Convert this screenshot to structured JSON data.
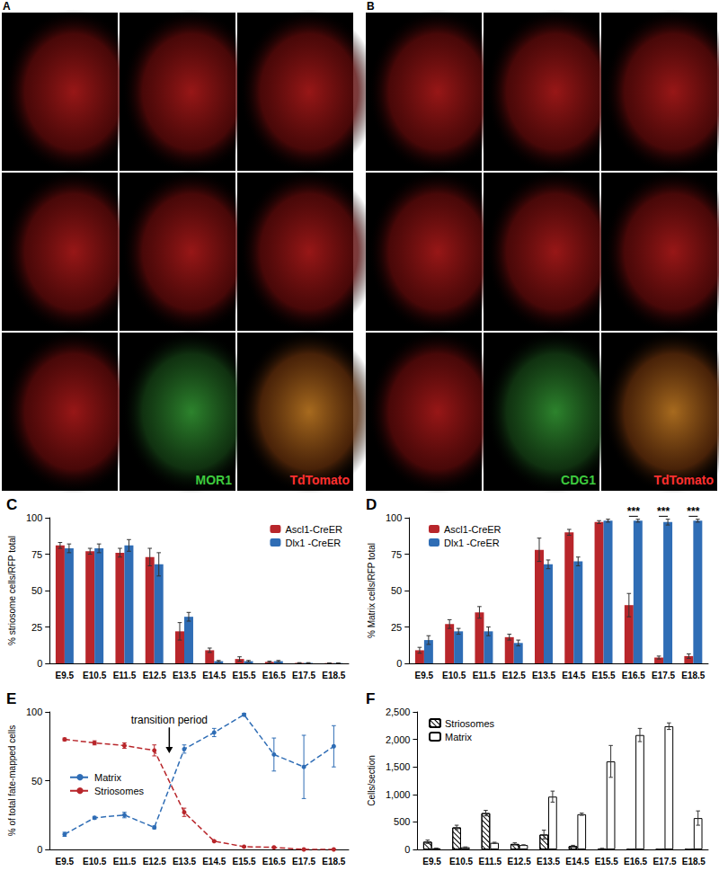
{
  "image_panels": [
    {
      "label": "A",
      "stain_labels": [
        {
          "text": "MOR1",
          "color": "#3ecb3e"
        },
        {
          "text": "TdTomato",
          "color": "#ff3030"
        }
      ]
    },
    {
      "label": "B",
      "stain_labels": [
        {
          "text": "CDG1",
          "color": "#3ecb3e"
        },
        {
          "text": "TdTomato",
          "color": "#ff3030"
        }
      ]
    }
  ],
  "chart_data": [
    {
      "type": "bar",
      "title": "C",
      "ylabel": "% striosome cells/RFP total",
      "categories": [
        "E9.5",
        "E10.5",
        "E11.5",
        "E12.5",
        "E13.5",
        "E14.5",
        "E15.5",
        "E16.5",
        "E17.5",
        "E18.5"
      ],
      "ylim": [
        0,
        100
      ],
      "yticks": [
        0,
        25,
        50,
        75,
        100
      ],
      "grid": false,
      "legend": "upper right",
      "series": [
        {
          "name": "Ascl1-CreER",
          "color": "#b8262b",
          "values": [
            81,
            77,
            76,
            73,
            22,
            9,
            3,
            1,
            0.3,
            0.2
          ],
          "errors": [
            2,
            2,
            3,
            6,
            6,
            1.5,
            1.5,
            0.5,
            0.2,
            0.1
          ]
        },
        {
          "name": "Dlx1 -CreER",
          "color": "#2f6db5",
          "values": [
            79,
            79,
            81,
            68,
            32,
            1.5,
            1.5,
            1.5,
            0.3,
            0.2
          ],
          "errors": [
            3,
            3,
            4,
            8,
            3,
            0.5,
            0.5,
            0.5,
            0.2,
            0.1
          ]
        }
      ]
    },
    {
      "type": "bar",
      "title": "D",
      "ylabel": "% Matrix cells/RFP total",
      "categories": [
        "E9.5",
        "E10.5",
        "E11.5",
        "E12.5",
        "E13.5",
        "E14.5",
        "E15.5",
        "E16.5",
        "E17.5",
        "E18.5"
      ],
      "ylim": [
        0,
        100
      ],
      "yticks": [
        0,
        25,
        50,
        75,
        100
      ],
      "grid": false,
      "legend": "upper left",
      "series": [
        {
          "name": "Ascl1-CreER",
          "color": "#b8262b",
          "values": [
            9,
            27,
            35,
            18,
            78,
            90,
            97,
            40,
            4,
            5
          ],
          "errors": [
            2,
            3,
            4,
            2,
            8,
            2,
            1,
            8,
            1,
            1.5
          ]
        },
        {
          "name": "Dlx1 -CreER",
          "color": "#2f6db5",
          "values": [
            16,
            22,
            22,
            14,
            68,
            70,
            98,
            98,
            97,
            98
          ],
          "errors": [
            3,
            2,
            3,
            2,
            3,
            3,
            1,
            1,
            2,
            1
          ]
        }
      ],
      "annotations": [
        {
          "x": "E16.5",
          "y": 101,
          "text": "***"
        },
        {
          "x": "E17.5",
          "y": 101,
          "text": "***"
        },
        {
          "x": "E18.5",
          "y": 101,
          "text": "***"
        }
      ]
    },
    {
      "type": "line",
      "title": "E",
      "ylabel": "% of total fate-mapped cells",
      "categories": [
        "E9.5",
        "E10.5",
        "E11.5",
        "E12.5",
        "E13.5",
        "E14.5",
        "E15.5",
        "E16.5",
        "E17.5",
        "E18.5"
      ],
      "ylim": [
        0,
        100
      ],
      "yticks": [
        0,
        50,
        100
      ],
      "grid": false,
      "legend": "center left",
      "series": [
        {
          "name": "Matrix",
          "color": "#2f6db5",
          "marker": "circle",
          "line_style": "dashed",
          "values": [
            11,
            23,
            25,
            16,
            73,
            85,
            98,
            69,
            60,
            75
          ],
          "errors": [
            1.5,
            1,
            2,
            1,
            3,
            3,
            1,
            12,
            23,
            15
          ]
        },
        {
          "name": "Striosomes",
          "color": "#b8262b",
          "marker": "circle",
          "line_style": "dashed",
          "values": [
            80,
            77.5,
            75.5,
            72,
            27,
            6,
            2,
            1.5,
            0,
            0
          ],
          "errors": [
            1,
            1.5,
            2,
            4,
            3,
            0.5,
            0.3,
            0.3,
            0,
            0
          ]
        }
      ],
      "annotations": [
        {
          "x_between": [
            "E12.5",
            "E13.5"
          ],
          "y": 90,
          "arrow_to": 70,
          "text": "transition period"
        }
      ]
    },
    {
      "type": "bar",
      "title": "F",
      "ylabel": "Cells/section",
      "categories": [
        "E9.5",
        "E10.5",
        "E11.5",
        "E12.5",
        "E13.5",
        "E14.5",
        "E15.5",
        "E16.5",
        "E17.5",
        "E18.5"
      ],
      "ylim": [
        0,
        2500
      ],
      "yticks": [
        0,
        500,
        1000,
        1500,
        2000,
        2500
      ],
      "grid": false,
      "legend": "upper left",
      "series": [
        {
          "name": "Striosomes",
          "color": "#000000",
          "marker": "hatch",
          "values": [
            140,
            400,
            660,
            100,
            270,
            60,
            15,
            0,
            0,
            0
          ],
          "errors": [
            30,
            40,
            50,
            20,
            80,
            15,
            5,
            0,
            0,
            0
          ]
        },
        {
          "name": "Matrix",
          "color": "#000000",
          "marker": "open",
          "values": [
            20,
            40,
            120,
            80,
            960,
            640,
            1600,
            2080,
            2240,
            570
          ],
          "errors": [
            5,
            5,
            10,
            5,
            100,
            20,
            290,
            120,
            60,
            130
          ]
        }
      ]
    }
  ]
}
